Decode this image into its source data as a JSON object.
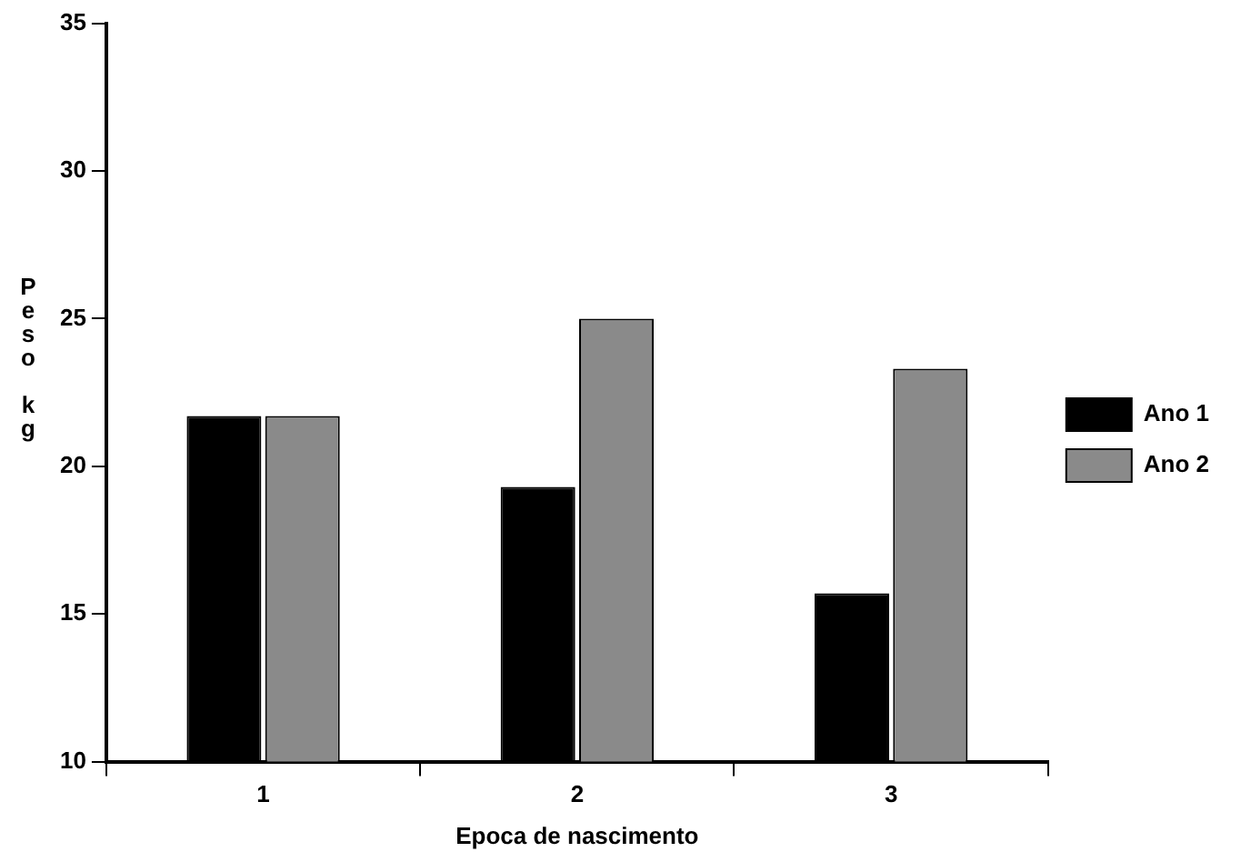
{
  "chart_data": {
    "type": "bar",
    "xlabel": "Epoca de nascimento",
    "ylabel": "Peso kg",
    "categories": [
      "1",
      "2",
      "3"
    ],
    "series": [
      {
        "name": "Ano 1",
        "color": "#000000",
        "values": [
          21.7,
          19.3,
          15.7
        ]
      },
      {
        "name": "Ano 2",
        "color": "#8a8a8a",
        "values": [
          21.7,
          25.0,
          23.3
        ]
      }
    ],
    "ylim": [
      10,
      35
    ],
    "yticks": [
      10,
      15,
      20,
      25,
      30,
      35
    ],
    "grid": false,
    "legend": "right"
  }
}
